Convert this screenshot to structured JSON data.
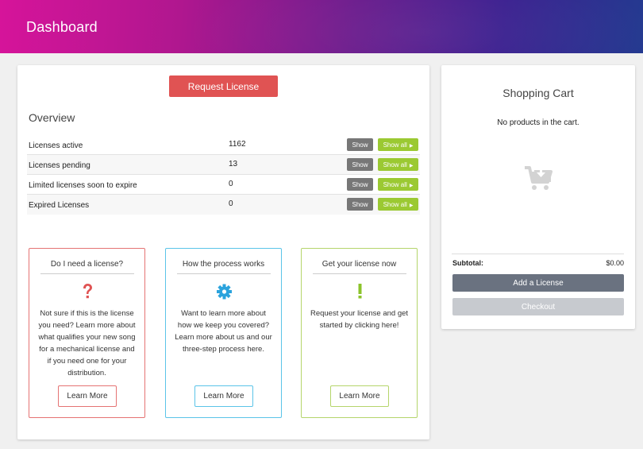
{
  "header": {
    "title": "Dashboard"
  },
  "main": {
    "request_button": "Request License",
    "overview_title": "Overview",
    "rows": [
      {
        "label": "Licenses active",
        "value": "1162",
        "show": "Show",
        "show_all": "Show all"
      },
      {
        "label": "Licenses pending",
        "value": "13",
        "show": "Show",
        "show_all": "Show all"
      },
      {
        "label": "Limited licenses soon to expire",
        "value": "0",
        "show": "Show",
        "show_all": "Show all"
      },
      {
        "label": "Expired Licenses",
        "value": "0",
        "show": "Show",
        "show_all": "Show all"
      }
    ],
    "info_boxes": [
      {
        "title": "Do I need a license?",
        "icon": "question-icon",
        "text": "Not sure if this is the license you need? Learn more about what qualifies your new song for a mechanical license and if you need one for your distribution.",
        "button": "Learn More",
        "color": "#e05353"
      },
      {
        "title": "How the process works",
        "icon": "gear-icon",
        "text": "Want to learn more about how we keep you covered? Learn more about us and our three-step process here.",
        "button": "Learn More",
        "color": "#2ba3dd"
      },
      {
        "title": "Get your license now",
        "icon": "exclamation-icon",
        "text": "Request your license and get started by clicking here!",
        "button": "Learn More",
        "color": "#8bc32a"
      }
    ]
  },
  "cart": {
    "title": "Shopping Cart",
    "empty_text": "No products in the cart.",
    "icon": "cart-download-icon",
    "subtotal_label": "Subtotal:",
    "subtotal_value": "$0.00",
    "add_button": "Add a License",
    "checkout_button": "Checkout"
  },
  "colors": {
    "header_gradient_start": "#d6149a",
    "header_gradient_end": "#243a90",
    "request_button": "#e05353",
    "show_button": "#777777",
    "show_all_button": "#9bc932",
    "add_license_button": "#6a7280",
    "checkout_button": "#c7cacf"
  }
}
